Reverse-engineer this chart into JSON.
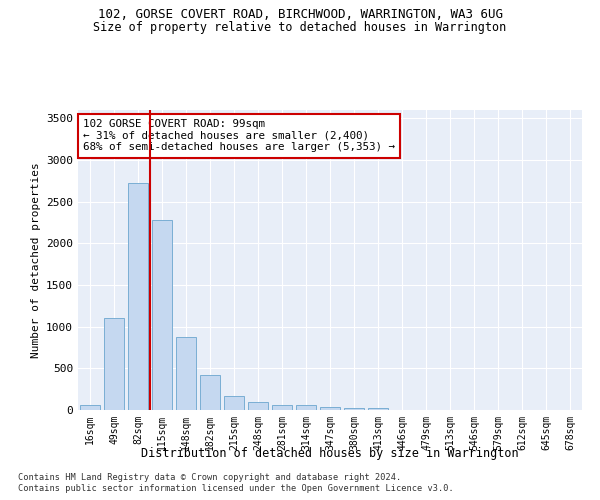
{
  "title1": "102, GORSE COVERT ROAD, BIRCHWOOD, WARRINGTON, WA3 6UG",
  "title2": "Size of property relative to detached houses in Warrington",
  "xlabel": "Distribution of detached houses by size in Warrington",
  "ylabel": "Number of detached properties",
  "categories": [
    "16sqm",
    "49sqm",
    "82sqm",
    "115sqm",
    "148sqm",
    "182sqm",
    "215sqm",
    "248sqm",
    "281sqm",
    "314sqm",
    "347sqm",
    "380sqm",
    "413sqm",
    "446sqm",
    "479sqm",
    "513sqm",
    "546sqm",
    "579sqm",
    "612sqm",
    "645sqm",
    "678sqm"
  ],
  "values": [
    55,
    1100,
    2720,
    2280,
    880,
    420,
    170,
    95,
    65,
    55,
    35,
    25,
    20,
    0,
    0,
    0,
    0,
    0,
    0,
    0,
    0
  ],
  "bar_color": "#c5d8f0",
  "bar_edge_color": "#7aaed4",
  "vline_color": "#cc0000",
  "annotation_text": "102 GORSE COVERT ROAD: 99sqm\n← 31% of detached houses are smaller (2,400)\n68% of semi-detached houses are larger (5,353) →",
  "annotation_box_color": "#ffffff",
  "annotation_box_edge_color": "#cc0000",
  "ylim": [
    0,
    3600
  ],
  "yticks": [
    0,
    500,
    1000,
    1500,
    2000,
    2500,
    3000,
    3500
  ],
  "bg_color": "#e8eef8",
  "grid_color": "#ffffff",
  "footer1": "Contains HM Land Registry data © Crown copyright and database right 2024.",
  "footer2": "Contains public sector information licensed under the Open Government Licence v3.0."
}
